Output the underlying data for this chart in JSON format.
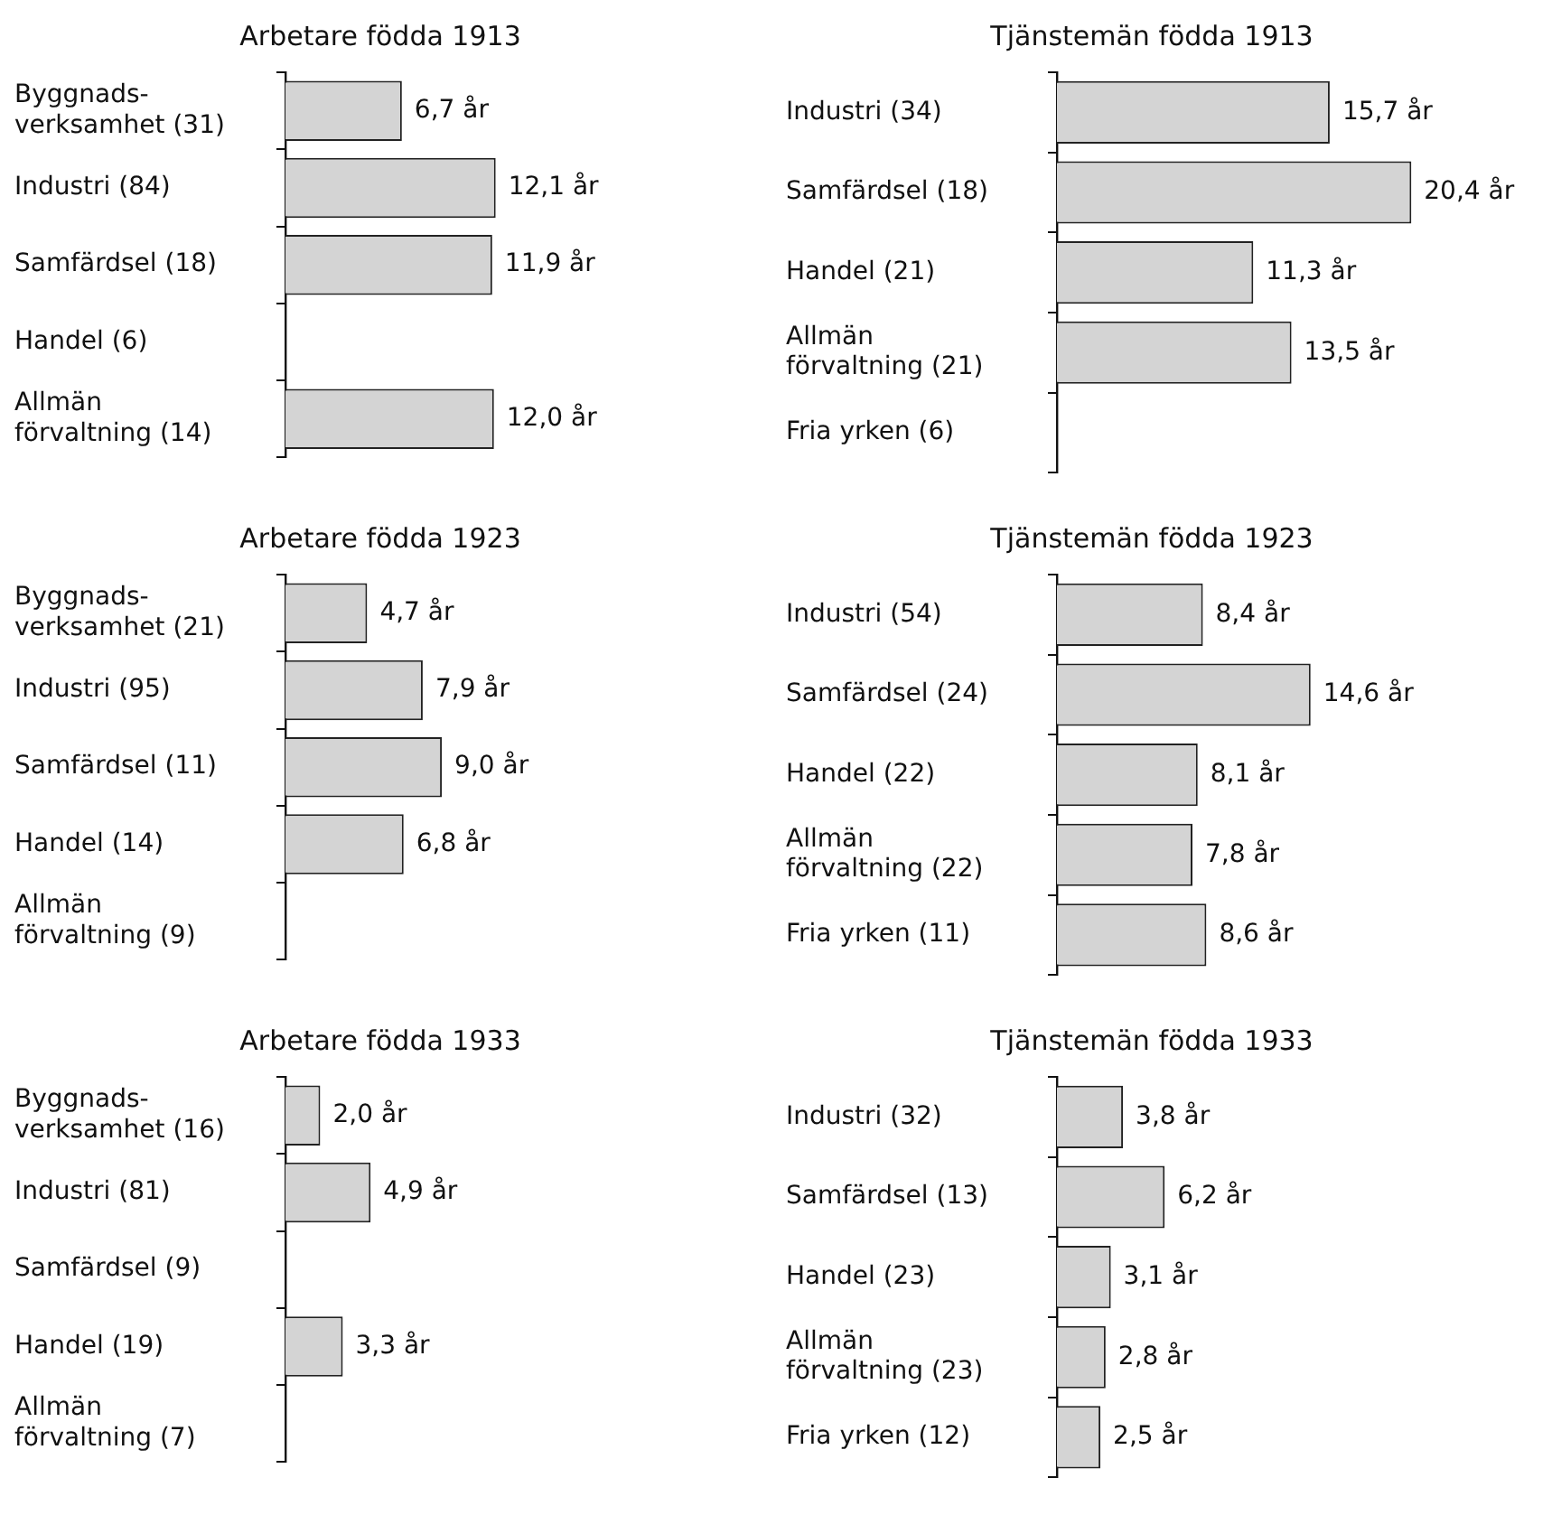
{
  "chart_data": [
    {
      "type": "bar",
      "orientation": "horizontal",
      "title": "Arbetare födda 1913",
      "categories": [
        "Byggnads- verksamhet (31)",
        "Industri (84)",
        "Samfärdsel (18)",
        "Handel (6)",
        "Allmän förvaltning (14)"
      ],
      "values": [
        6.7,
        12.1,
        11.9,
        null,
        12.0
      ],
      "value_labels": [
        "6,7 år",
        "12,1 år",
        "11,9 år",
        null,
        "12,0 år"
      ],
      "color": "#d4d4d4",
      "tick_labels": "y"
    },
    {
      "type": "bar",
      "orientation": "horizontal",
      "title": "Tjänstemän födda 1913",
      "categories": [
        "Industri (34)",
        "Samfärdsel (18)",
        "Handel (21)",
        "Allmän förvaltning (21)",
        "Fria yrken (6)"
      ],
      "values": [
        15.7,
        20.4,
        11.3,
        13.5,
        null
      ],
      "value_labels": [
        "15,7 år",
        "20,4 år",
        "11,3 år",
        "13,5 år",
        null
      ],
      "color": "#d4d4d4",
      "tick_labels": "y"
    },
    {
      "type": "bar",
      "orientation": "horizontal",
      "title": "Arbetare födda 1923",
      "categories": [
        "Byggnads- verksamhet (21)",
        "Industri (95)",
        "Samfärdsel (11)",
        "Handel (14)",
        "Allmän förvaltning (9)"
      ],
      "values": [
        4.7,
        7.9,
        9.0,
        6.8,
        null
      ],
      "value_labels": [
        "4,7 år",
        "7,9 år",
        "9,0 år",
        "6,8 år",
        null
      ],
      "color": "#d4d4d4",
      "tick_labels": "y"
    },
    {
      "type": "bar",
      "orientation": "horizontal",
      "title": "Tjänstemän födda 1923",
      "categories": [
        "Industri (54)",
        "Samfärdsel (24)",
        "Handel (22)",
        "Allmän förvaltning (22)",
        "Fria yrken (11)"
      ],
      "values": [
        8.4,
        14.6,
        8.1,
        7.8,
        8.6
      ],
      "value_labels": [
        "8,4 år",
        "14,6 år",
        "8,1 år",
        "7,8 år",
        "8,6 år"
      ],
      "color": "#d4d4d4",
      "tick_labels": "y"
    },
    {
      "type": "bar",
      "orientation": "horizontal",
      "title": "Arbetare födda 1933",
      "categories": [
        "Byggnads- verksamhet (16)",
        "Industri (81)",
        "Samfärdsel (9)",
        "Handel (19)",
        "Allmän förvaltning (7)"
      ],
      "values": [
        2.0,
        4.9,
        null,
        3.3,
        null
      ],
      "value_labels": [
        "2,0 år",
        "4,9 år",
        null,
        "3,3 år",
        null
      ],
      "color": "#d4d4d4",
      "tick_labels": "y"
    },
    {
      "type": "bar",
      "orientation": "horizontal",
      "title": "Tjänstemän födda 1933",
      "categories": [
        "Industri (32)",
        "Samfärdsel (13)",
        "Handel (23)",
        "Allmän förvaltning (23)",
        "Fria yrken (12)"
      ],
      "values": [
        3.8,
        6.2,
        3.1,
        2.8,
        2.5
      ],
      "value_labels": [
        "3,8 år",
        "6,2 år",
        "3,1 år",
        "2,8 år",
        "2,5 år"
      ],
      "color": "#d4d4d4",
      "tick_labels": "y"
    }
  ]
}
